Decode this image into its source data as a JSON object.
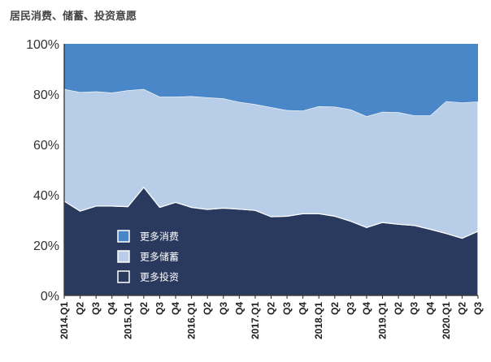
{
  "chart_data": {
    "type": "area",
    "stacked": true,
    "title": "居民消费、储蓄、投资意愿",
    "y_ticks": [
      "0%",
      "20%",
      "40%",
      "60%",
      "80%",
      "100%"
    ],
    "y_tick_values": [
      0,
      20,
      40,
      60,
      80,
      100
    ],
    "ylim": [
      0,
      100
    ],
    "x_tick_labels": [
      "2014.Q1",
      "Q2",
      "Q3",
      "Q4",
      "2015.Q1",
      "Q2",
      "Q3",
      "Q4",
      "2016.Q1",
      "Q2",
      "Q3",
      "Q4",
      "2017.Q1",
      "Q2",
      "Q3",
      "Q4",
      "2018.Q1",
      "Q2",
      "Q3",
      "Q4",
      "2019.Q1",
      "Q2",
      "Q3",
      "Q4",
      "2020.Q1",
      "Q2",
      "Q3"
    ],
    "series": [
      {
        "name": "更多投资",
        "color": "#2a3a5e",
        "values": [
          37.5,
          33.5,
          35.5,
          35.5,
          35.3,
          43.0,
          35.0,
          37.0,
          35.0,
          34.2,
          34.7,
          34.3,
          33.8,
          31.3,
          31.5,
          32.5,
          32.5,
          31.5,
          29.5,
          27.0,
          29.0,
          28.3,
          27.8,
          26.3,
          24.6,
          22.7,
          25.5
        ]
      },
      {
        "name": "更多储蓄",
        "color": "#b8cde7",
        "values": [
          44.5,
          47.3,
          45.6,
          45.1,
          46.2,
          39.0,
          44.0,
          42.0,
          44.2,
          44.5,
          43.6,
          42.6,
          42.2,
          43.5,
          42.1,
          41.0,
          42.7,
          43.5,
          44.4,
          44.2,
          44.0,
          44.5,
          43.7,
          45.2,
          52.6,
          54.0,
          51.5
        ]
      },
      {
        "name": "更多消费",
        "color": "#4a87c8",
        "values": [
          18.0,
          19.2,
          18.9,
          19.4,
          18.5,
          18.0,
          21.0,
          21.0,
          20.8,
          21.3,
          21.7,
          23.1,
          24.0,
          25.2,
          26.4,
          26.5,
          24.8,
          25.0,
          26.1,
          28.8,
          27.0,
          27.2,
          28.5,
          28.5,
          22.8,
          23.3,
          23.0
        ]
      }
    ],
    "legend": {
      "position": "lower-left",
      "order": [
        "更多消费",
        "更多储蓄",
        "更多投资"
      ]
    },
    "grid": false
  }
}
